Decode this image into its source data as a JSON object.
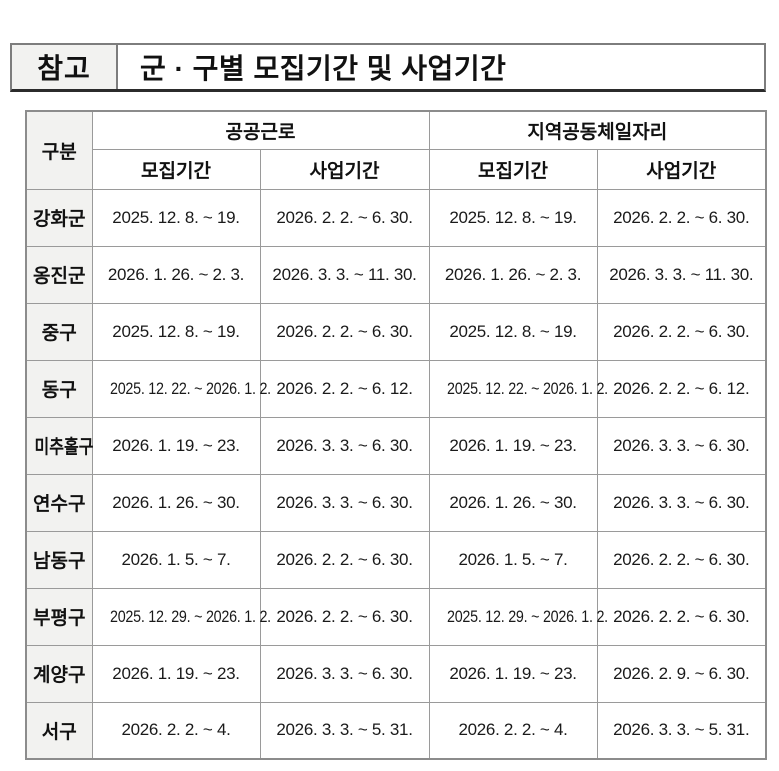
{
  "banner": {
    "tag": "참고",
    "title": "군 · 구별 모집기간 및 사업기간"
  },
  "table": {
    "header": {
      "category": "구분",
      "group1": "공공근로",
      "group2": "지역공동체일자리"
    },
    "sub_headers": [
      "모집기간",
      "사업기간",
      "모집기간",
      "사업기간"
    ],
    "rows": [
      {
        "district": "강화군",
        "cells": [
          "2025. 12. 8. ~ 19.",
          "2026. 2. 2. ~ 6. 30.",
          "2025. 12. 8. ~ 19.",
          "2026. 2. 2. ~ 6. 30."
        ]
      },
      {
        "district": "옹진군",
        "cells": [
          "2026. 1. 26. ~ 2. 3.",
          "2026. 3. 3. ~ 11. 30.",
          "2026. 1. 26. ~ 2. 3.",
          "2026. 3. 3. ~ 11. 30."
        ]
      },
      {
        "district": "중구",
        "cells": [
          "2025. 12. 8. ~ 19.",
          "2026. 2. 2. ~ 6. 30.",
          "2025. 12. 8. ~ 19.",
          "2026. 2. 2. ~ 6. 30."
        ]
      },
      {
        "district": "동구",
        "cells": [
          "2025. 12. 22. ~ 2026. 1. 2.",
          "2026. 2. 2. ~ 6. 12.",
          "2025. 12. 22. ~ 2026. 1. 2.",
          "2026. 2. 2. ~ 6. 12."
        ]
      },
      {
        "district": "미추홀구",
        "cells": [
          "2026. 1. 19. ~ 23.",
          "2026. 3. 3. ~ 6. 30.",
          "2026. 1. 19. ~ 23.",
          "2026. 3. 3. ~ 6. 30."
        ]
      },
      {
        "district": "연수구",
        "cells": [
          "2026. 1. 26. ~ 30.",
          "2026. 3. 3. ~ 6. 30.",
          "2026. 1. 26. ~ 30.",
          "2026. 3. 3. ~ 6. 30."
        ]
      },
      {
        "district": "남동구",
        "cells": [
          "2026. 1. 5. ~ 7.",
          "2026. 2. 2. ~ 6. 30.",
          "2026. 1. 5. ~ 7.",
          "2026. 2. 2. ~ 6. 30."
        ]
      },
      {
        "district": "부평구",
        "cells": [
          "2025. 12. 29. ~ 2026. 1. 2.",
          "2026. 2. 2. ~ 6. 30.",
          "2025. 12. 29. ~ 2026. 1. 2.",
          "2026. 2. 2. ~ 6. 30."
        ]
      },
      {
        "district": "계양구",
        "cells": [
          "2026. 1. 19. ~ 23.",
          "2026. 3. 3. ~ 6. 30.",
          "2026. 1. 19. ~ 23.",
          "2026. 2. 9. ~ 6. 30."
        ]
      },
      {
        "district": "서구",
        "cells": [
          "2026. 2. 2. ~ 4.",
          "2026. 3. 3. ~ 5. 31.",
          "2026. 2. 2. ~ 4.",
          "2026. 3. 3. ~ 5. 31."
        ]
      }
    ]
  },
  "colors": {
    "border": "#9a9a9a",
    "outer_border": "#8c8c8c",
    "label_bg": "#f2f2f0",
    "banner_border": "#7d7d7d",
    "banner_bottom": "#2b2b2b"
  }
}
